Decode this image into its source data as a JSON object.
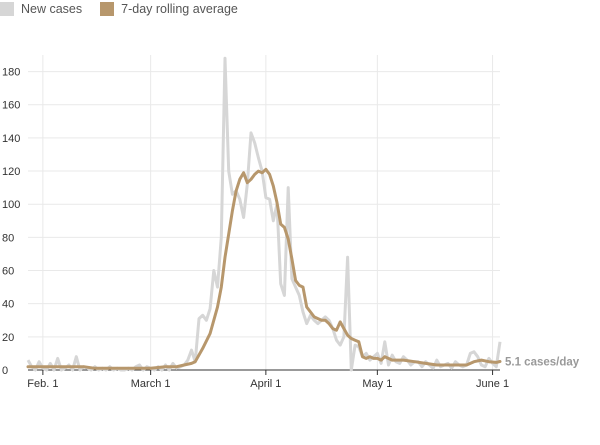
{
  "colors": {
    "new_cases": "#d6d6d6",
    "rolling_avg": "#b7976c",
    "grid": "#e9e9e9",
    "axis": "#333333",
    "end_label": "#999999"
  },
  "legend": {
    "new_cases": "New cases",
    "rolling_avg": "7-day rolling average"
  },
  "end_label": "5.1 cases/day",
  "chart_data": {
    "type": "line",
    "x_start": "2020-01-28",
    "x_end": "2020-06-03",
    "ylim": [
      0,
      190
    ],
    "yticks": [
      0,
      20,
      40,
      60,
      80,
      100,
      120,
      140,
      160,
      180
    ],
    "xticks": [
      {
        "date": "2020-02-01",
        "label": "Feb. 1"
      },
      {
        "date": "2020-03-01",
        "label": "March 1"
      },
      {
        "date": "2020-04-01",
        "label": "April 1"
      },
      {
        "date": "2020-05-01",
        "label": "May 1"
      },
      {
        "date": "2020-06-01",
        "label": "June 1"
      }
    ],
    "grid": true,
    "legend_position": "top-left",
    "series": [
      {
        "name": "New cases",
        "style": "bars-line",
        "points": [
          [
            "2020-01-28",
            6
          ],
          [
            "2020-01-29",
            2
          ],
          [
            "2020-01-30",
            0
          ],
          [
            "2020-01-31",
            5
          ],
          [
            "2020-02-01",
            1
          ],
          [
            "2020-02-02",
            0
          ],
          [
            "2020-02-03",
            4
          ],
          [
            "2020-02-04",
            0
          ],
          [
            "2020-02-05",
            7
          ],
          [
            "2020-02-06",
            0
          ],
          [
            "2020-02-07",
            1
          ],
          [
            "2020-02-08",
            3
          ],
          [
            "2020-02-09",
            0
          ],
          [
            "2020-02-10",
            8
          ],
          [
            "2020-02-11",
            0
          ],
          [
            "2020-02-12",
            2
          ],
          [
            "2020-02-13",
            1
          ],
          [
            "2020-02-14",
            0
          ],
          [
            "2020-02-15",
            2
          ],
          [
            "2020-02-16",
            0
          ],
          [
            "2020-02-17",
            1
          ],
          [
            "2020-02-18",
            0
          ],
          [
            "2020-02-19",
            2
          ],
          [
            "2020-02-20",
            0
          ],
          [
            "2020-02-21",
            1
          ],
          [
            "2020-02-22",
            0
          ],
          [
            "2020-02-23",
            0
          ],
          [
            "2020-02-24",
            1
          ],
          [
            "2020-02-25",
            0
          ],
          [
            "2020-02-26",
            2
          ],
          [
            "2020-02-27",
            3
          ],
          [
            "2020-02-28",
            0
          ],
          [
            "2020-02-29",
            2
          ],
          [
            "2020-03-01",
            1
          ],
          [
            "2020-03-02",
            0
          ],
          [
            "2020-03-03",
            2
          ],
          [
            "2020-03-04",
            0
          ],
          [
            "2020-03-05",
            3
          ],
          [
            "2020-03-06",
            0
          ],
          [
            "2020-03-07",
            4
          ],
          [
            "2020-03-08",
            1
          ],
          [
            "2020-03-09",
            2
          ],
          [
            "2020-03-10",
            3
          ],
          [
            "2020-03-11",
            6
          ],
          [
            "2020-03-12",
            12
          ],
          [
            "2020-03-13",
            5
          ],
          [
            "2020-03-14",
            31
          ],
          [
            "2020-03-15",
            33
          ],
          [
            "2020-03-16",
            30
          ],
          [
            "2020-03-17",
            37
          ],
          [
            "2020-03-18",
            60
          ],
          [
            "2020-03-19",
            50
          ],
          [
            "2020-03-20",
            80
          ],
          [
            "2020-03-21",
            188
          ],
          [
            "2020-03-22",
            120
          ],
          [
            "2020-03-23",
            106
          ],
          [
            "2020-03-24",
            108
          ],
          [
            "2020-03-25",
            103
          ],
          [
            "2020-03-26",
            92
          ],
          [
            "2020-03-27",
            112
          ],
          [
            "2020-03-28",
            143
          ],
          [
            "2020-03-29",
            137
          ],
          [
            "2020-03-30",
            128
          ],
          [
            "2020-03-31",
            120
          ],
          [
            "2020-04-01",
            104
          ],
          [
            "2020-04-02",
            103
          ],
          [
            "2020-04-03",
            90
          ],
          [
            "2020-04-04",
            100
          ],
          [
            "2020-04-05",
            52
          ],
          [
            "2020-04-06",
            45
          ],
          [
            "2020-04-07",
            110
          ],
          [
            "2020-04-08",
            55
          ],
          [
            "2020-04-09",
            50
          ],
          [
            "2020-04-10",
            45
          ],
          [
            "2020-04-11",
            35
          ],
          [
            "2020-04-12",
            28
          ],
          [
            "2020-04-13",
            33
          ],
          [
            "2020-04-14",
            30
          ],
          [
            "2020-04-15",
            28
          ],
          [
            "2020-04-16",
            30
          ],
          [
            "2020-04-17",
            32
          ],
          [
            "2020-04-18",
            30
          ],
          [
            "2020-04-19",
            25
          ],
          [
            "2020-04-20",
            18
          ],
          [
            "2020-04-21",
            15
          ],
          [
            "2020-04-22",
            20
          ],
          [
            "2020-04-23",
            68
          ],
          [
            "2020-04-24",
            0
          ],
          [
            "2020-04-25",
            15
          ],
          [
            "2020-04-26",
            14
          ],
          [
            "2020-04-27",
            8
          ],
          [
            "2020-04-28",
            10
          ],
          [
            "2020-04-29",
            6
          ],
          [
            "2020-04-30",
            8
          ],
          [
            "2020-05-01",
            10
          ],
          [
            "2020-05-02",
            4
          ],
          [
            "2020-05-03",
            17
          ],
          [
            "2020-05-04",
            3
          ],
          [
            "2020-05-05",
            9
          ],
          [
            "2020-05-06",
            5
          ],
          [
            "2020-05-07",
            4
          ],
          [
            "2020-05-08",
            8
          ],
          [
            "2020-05-09",
            6
          ],
          [
            "2020-05-10",
            3
          ],
          [
            "2020-05-11",
            5
          ],
          [
            "2020-05-12",
            5
          ],
          [
            "2020-05-13",
            2
          ],
          [
            "2020-05-14",
            5
          ],
          [
            "2020-05-15",
            3
          ],
          [
            "2020-05-16",
            1
          ],
          [
            "2020-05-17",
            6
          ],
          [
            "2020-05-18",
            2
          ],
          [
            "2020-05-19",
            3
          ],
          [
            "2020-05-20",
            4
          ],
          [
            "2020-05-21",
            1
          ],
          [
            "2020-05-22",
            5
          ],
          [
            "2020-05-23",
            3
          ],
          [
            "2020-05-24",
            2
          ],
          [
            "2020-05-25",
            3
          ],
          [
            "2020-05-26",
            10
          ],
          [
            "2020-05-27",
            11
          ],
          [
            "2020-05-28",
            8
          ],
          [
            "2020-05-29",
            3
          ],
          [
            "2020-05-30",
            2
          ],
          [
            "2020-05-31",
            7
          ],
          [
            "2020-06-01",
            4
          ],
          [
            "2020-06-02",
            2
          ],
          [
            "2020-06-03",
            17
          ]
        ]
      },
      {
        "name": "7-day rolling average",
        "style": "line",
        "points": [
          [
            "2020-01-28",
            2
          ],
          [
            "2020-01-31",
            2
          ],
          [
            "2020-02-03",
            2
          ],
          [
            "2020-02-06",
            2
          ],
          [
            "2020-02-09",
            2
          ],
          [
            "2020-02-12",
            2
          ],
          [
            "2020-02-15",
            1
          ],
          [
            "2020-02-18",
            1
          ],
          [
            "2020-02-21",
            1
          ],
          [
            "2020-02-24",
            1
          ],
          [
            "2020-02-27",
            1
          ],
          [
            "2020-03-01",
            1
          ],
          [
            "2020-03-05",
            2
          ],
          [
            "2020-03-08",
            2
          ],
          [
            "2020-03-10",
            3
          ],
          [
            "2020-03-12",
            4
          ],
          [
            "2020-03-13",
            5
          ],
          [
            "2020-03-15",
            13
          ],
          [
            "2020-03-17",
            22
          ],
          [
            "2020-03-19",
            38
          ],
          [
            "2020-03-20",
            50
          ],
          [
            "2020-03-21",
            68
          ],
          [
            "2020-03-22",
            82
          ],
          [
            "2020-03-23",
            96
          ],
          [
            "2020-03-24",
            108
          ],
          [
            "2020-03-25",
            115
          ],
          [
            "2020-03-26",
            119
          ],
          [
            "2020-03-27",
            113
          ],
          [
            "2020-03-28",
            115
          ],
          [
            "2020-03-29",
            118
          ],
          [
            "2020-03-30",
            120
          ],
          [
            "2020-03-31",
            119
          ],
          [
            "2020-04-01",
            121
          ],
          [
            "2020-04-02",
            118
          ],
          [
            "2020-04-03",
            111
          ],
          [
            "2020-04-04",
            101
          ],
          [
            "2020-04-05",
            88
          ],
          [
            "2020-04-06",
            86
          ],
          [
            "2020-04-07",
            79
          ],
          [
            "2020-04-08",
            67
          ],
          [
            "2020-04-09",
            54
          ],
          [
            "2020-04-10",
            51
          ],
          [
            "2020-04-11",
            50
          ],
          [
            "2020-04-12",
            38
          ],
          [
            "2020-04-13",
            35
          ],
          [
            "2020-04-14",
            32
          ],
          [
            "2020-04-15",
            31
          ],
          [
            "2020-04-16",
            30
          ],
          [
            "2020-04-17",
            30
          ],
          [
            "2020-04-18",
            28
          ],
          [
            "2020-04-19",
            25
          ],
          [
            "2020-04-20",
            24
          ],
          [
            "2020-04-21",
            29
          ],
          [
            "2020-04-22",
            25
          ],
          [
            "2020-04-23",
            21
          ],
          [
            "2020-04-24",
            19
          ],
          [
            "2020-04-25",
            18
          ],
          [
            "2020-04-26",
            17
          ],
          [
            "2020-04-27",
            8
          ],
          [
            "2020-04-28",
            7
          ],
          [
            "2020-04-29",
            8
          ],
          [
            "2020-04-30",
            7
          ],
          [
            "2020-05-01",
            7
          ],
          [
            "2020-05-02",
            6
          ],
          [
            "2020-05-03",
            8
          ],
          [
            "2020-05-05",
            6
          ],
          [
            "2020-05-08",
            6
          ],
          [
            "2020-05-11",
            5
          ],
          [
            "2020-05-14",
            4
          ],
          [
            "2020-05-17",
            3
          ],
          [
            "2020-05-20",
            3
          ],
          [
            "2020-05-23",
            3
          ],
          [
            "2020-05-25",
            3
          ],
          [
            "2020-05-27",
            5
          ],
          [
            "2020-05-29",
            6
          ],
          [
            "2020-05-31",
            5
          ],
          [
            "2020-06-02",
            4.6
          ],
          [
            "2020-06-03",
            5.1
          ]
        ]
      }
    ]
  }
}
